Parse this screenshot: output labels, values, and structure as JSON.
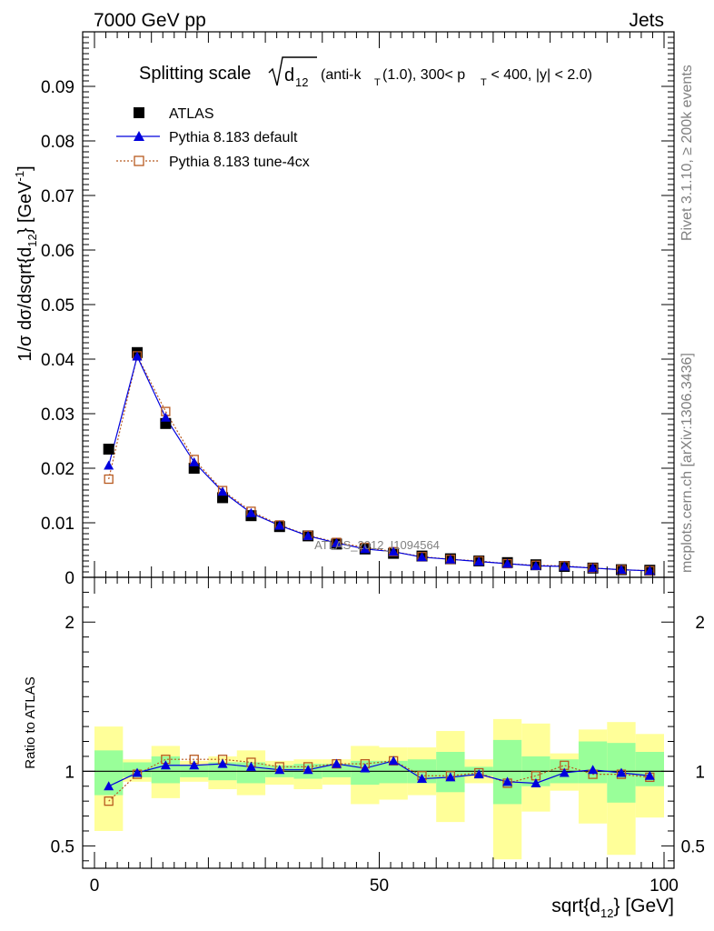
{
  "header": {
    "left": "7000 GeV pp",
    "right": "Jets"
  },
  "side_labels": {
    "rivet": "Rivet 3.1.10, ≥ 200k events",
    "mcplots": "mcplots.cern.ch [arXiv:1306.3436]"
  },
  "chart_data": {
    "type": "scatter",
    "title": {
      "main": "Splitting scale",
      "sqrt_arg": "d",
      "sqrt_sub": "12",
      "cut_a": "(anti-k",
      "cut_a_sub": "T",
      "cut_b": "(1.0), 300< p",
      "cut_b_sub": "T",
      "cut_c": " < 400, |y| < 2.0)"
    },
    "watermark": "ATLAS_2012_I1094564",
    "x": [
      2.5,
      7.5,
      12.5,
      17.5,
      22.5,
      27.5,
      32.5,
      37.5,
      42.5,
      47.5,
      52.5,
      57.5,
      62.5,
      67.5,
      72.5,
      77.5,
      82.5,
      87.5,
      92.5,
      97.5
    ],
    "xlim": [
      0,
      100
    ],
    "xticks": [
      "0",
      "50",
      "100"
    ],
    "xlabel": {
      "main": "sqrt{d",
      "sub": "12",
      "tail": "} [GeV]"
    },
    "main_panel": {
      "ylabel": {
        "a": "1/σ dσ/dsqrt{d",
        "a_sub": "12",
        "b": "} [GeV",
        "b_sup": "-1",
        "c": "]"
      },
      "ylim": [
        0,
        0.1
      ],
      "yticks": [
        "0",
        "0.01",
        "0.02",
        "0.03",
        "0.04",
        "0.05",
        "0.06",
        "0.07",
        "0.08",
        "0.09"
      ],
      "series": [
        {
          "name": "ATLAS",
          "color": "#000000",
          "marker": "square-filled",
          "values": [
            0.0235,
            0.0412,
            0.0282,
            0.02,
            0.0146,
            0.0113,
            0.0093,
            0.0076,
            0.0061,
            0.0052,
            0.0044,
            0.0039,
            0.0034,
            0.003,
            0.0027,
            0.0023,
            0.002,
            0.0017,
            0.0014,
            0.0013
          ]
        },
        {
          "name": "Pythia 8.183 default",
          "color": "#0000dd",
          "marker": "triangle-filled",
          "values": [
            0.0205,
            0.0405,
            0.0293,
            0.0211,
            0.0157,
            0.0118,
            0.0095,
            0.0076,
            0.0063,
            0.0052,
            0.0047,
            0.0037,
            0.0033,
            0.0029,
            0.0025,
            0.0021,
            0.002,
            0.0017,
            0.0014,
            0.0012
          ]
        },
        {
          "name": "Pythia 8.183 tune-4cx",
          "color": "#b85a20",
          "marker": "square-open",
          "values": [
            0.018,
            0.0406,
            0.0304,
            0.0216,
            0.0159,
            0.0121,
            0.0096,
            0.0077,
            0.0064,
            0.0055,
            0.0047,
            0.0038,
            0.0033,
            0.003,
            0.0025,
            0.0022,
            0.0021,
            0.0017,
            0.0014,
            0.0012
          ]
        }
      ]
    },
    "ratio_panel": {
      "ylabel": "Ratio to ATLAS",
      "ylim": [
        0.35,
        2.3
      ],
      "yticks": [
        "0.5",
        "1",
        "2"
      ],
      "reference_line": 1,
      "band_outer_color": "#ffff99",
      "band_inner_color": "#99ff99",
      "band_inner": [
        [
          0.84,
          1.14
        ],
        [
          0.96,
          1.06
        ],
        [
          0.92,
          1.1
        ],
        [
          0.96,
          1.04
        ],
        [
          0.94,
          1.06
        ],
        [
          0.92,
          1.06
        ],
        [
          0.96,
          1.04
        ],
        [
          0.95,
          1.05
        ],
        [
          0.96,
          1.05
        ],
        [
          0.91,
          1.07
        ],
        [
          0.92,
          1.07
        ],
        [
          0.92,
          1.08
        ],
        [
          0.86,
          1.13
        ],
        [
          0.97,
          1.03
        ],
        [
          0.78,
          1.21
        ],
        [
          0.9,
          1.1
        ],
        [
          0.92,
          1.08
        ],
        [
          0.92,
          1.2
        ],
        [
          0.79,
          1.19
        ],
        [
          0.9,
          1.13
        ]
      ],
      "band_outer": [
        [
          0.6,
          1.3
        ],
        [
          0.93,
          1.08
        ],
        [
          0.82,
          1.17
        ],
        [
          0.93,
          1.07
        ],
        [
          0.88,
          1.1
        ],
        [
          0.84,
          1.14
        ],
        [
          0.91,
          1.07
        ],
        [
          0.88,
          1.08
        ],
        [
          0.91,
          1.08
        ],
        [
          0.78,
          1.17
        ],
        [
          0.81,
          1.16
        ],
        [
          0.84,
          1.16
        ],
        [
          0.66,
          1.27
        ],
        [
          0.92,
          1.08
        ],
        [
          0.41,
          1.35
        ],
        [
          0.73,
          1.32
        ],
        [
          0.87,
          1.12
        ],
        [
          0.65,
          1.28
        ],
        [
          0.44,
          1.33
        ],
        [
          0.69,
          1.25
        ]
      ],
      "series": [
        {
          "name": "Pythia 8.183 default",
          "color": "#0000dd",
          "values": [
            0.9,
            0.99,
            1.04,
            1.04,
            1.05,
            1.03,
            1.01,
            1.01,
            1.05,
            1.02,
            1.07,
            0.95,
            0.96,
            0.98,
            0.93,
            0.92,
            0.99,
            1.01,
            0.99,
            0.97
          ]
        },
        {
          "name": "Pythia 8.183 tune-4cx",
          "color": "#b85a20",
          "values": [
            0.8,
            0.98,
            1.08,
            1.08,
            1.08,
            1.06,
            1.03,
            1.03,
            1.05,
            1.05,
            1.07,
            0.97,
            0.97,
            0.99,
            0.92,
            0.97,
            1.04,
            0.98,
            0.98,
            0.96
          ]
        }
      ]
    }
  }
}
